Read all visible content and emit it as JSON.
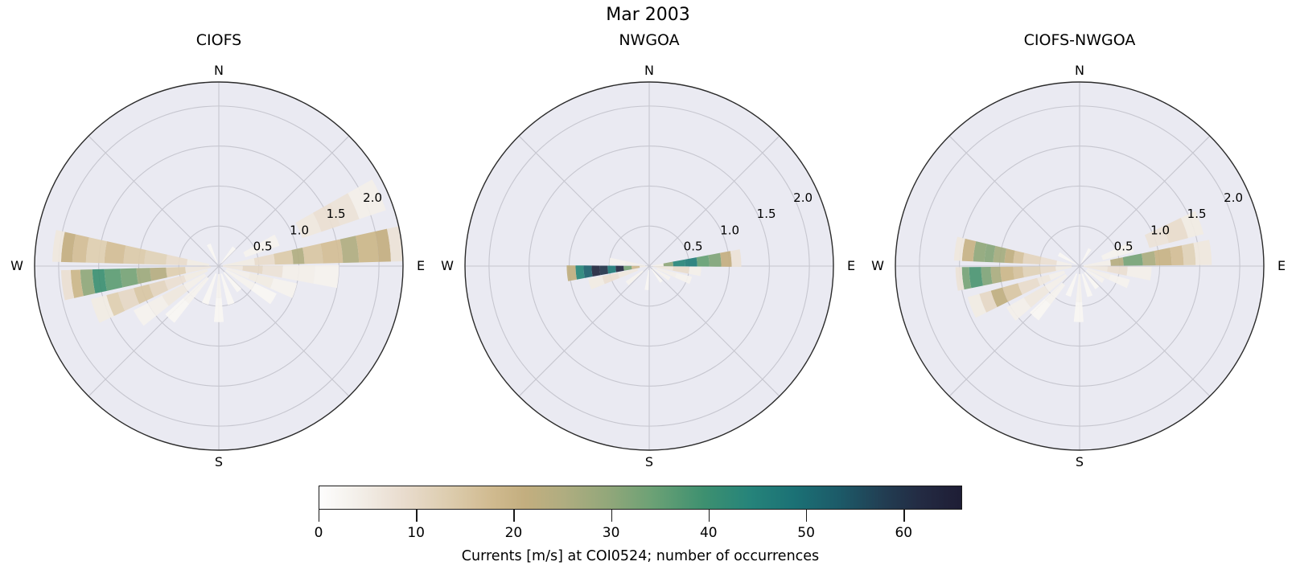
{
  "figure": {
    "title": "Mar 2003"
  },
  "axes": {
    "cardinal_labels": {
      "n": "N",
      "e": "E",
      "s": "S",
      "w": "W"
    },
    "r_tick_labels": [
      "0.5",
      "1.0",
      "1.5",
      "2.0"
    ],
    "r_max": 2.3,
    "theta_grid_step_deg": 45,
    "face_color": "#eaeaf2",
    "grid_color": "#c6c6cf",
    "spine_color": "#2b2b2b"
  },
  "colorbar": {
    "label": "Currents [m/s] at COI0524; number of occurrences",
    "ticks": [
      0,
      10,
      20,
      30,
      40,
      50,
      60
    ],
    "vmin": 0,
    "vmax": 66,
    "colormap_name": "rain-like (white-tan-green-teal-navy)",
    "colormap_stops": [
      [
        0.0,
        "#fdfdfd"
      ],
      [
        0.06,
        "#f3efe9"
      ],
      [
        0.13,
        "#e9dcce"
      ],
      [
        0.2,
        "#ddcdaf"
      ],
      [
        0.27,
        "#d0ba8f"
      ],
      [
        0.32,
        "#c3ae7f"
      ],
      [
        0.38,
        "#b0ad80"
      ],
      [
        0.45,
        "#92a77a"
      ],
      [
        0.52,
        "#6ba175"
      ],
      [
        0.6,
        "#3d9070"
      ],
      [
        0.67,
        "#26847a"
      ],
      [
        0.74,
        "#1b7175"
      ],
      [
        0.81,
        "#1c5a68"
      ],
      [
        0.88,
        "#223d52"
      ],
      [
        0.94,
        "#232a42"
      ],
      [
        1.0,
        "#1e1d35"
      ]
    ]
  },
  "chart_data": [
    {
      "type": "polar_rose_histogram",
      "title": "CIOFS",
      "angle_convention": "compass degrees, 0=N, 90=E",
      "radial_axis": "current speed [m/s], rings at 0.5/1.0/1.5/2.0, max 2.3",
      "color_meaning": "number of occurrences (see colorbar, 0-66)",
      "wedges": [
        {
          "dir": 83,
          "w": 11,
          "segments": [
            [
              0.05,
              0.45,
              5
            ],
            [
              0.45,
              0.7,
              9
            ],
            [
              0.7,
              0.93,
              14
            ],
            [
              0.93,
              1.07,
              25
            ],
            [
              1.07,
              1.3,
              15
            ],
            [
              1.3,
              1.55,
              17
            ],
            [
              1.55,
              1.75,
              25
            ],
            [
              1.75,
              2.0,
              19
            ],
            [
              2.0,
              2.15,
              21
            ],
            [
              2.15,
              2.3,
              7
            ]
          ]
        },
        {
          "dir": 66,
          "w": 11,
          "segments": [
            [
              0.35,
              0.8,
              3
            ],
            [
              1.1,
              1.35,
              6
            ],
            [
              1.35,
              1.6,
              8
            ],
            [
              1.6,
              1.85,
              7
            ],
            [
              1.85,
              2.2,
              4
            ]
          ]
        },
        {
          "dir": 95,
          "w": 11,
          "segments": [
            [
              0.05,
              0.3,
              6
            ],
            [
              0.3,
              0.55,
              10
            ],
            [
              0.55,
              0.8,
              7
            ],
            [
              0.8,
              1.2,
              4
            ],
            [
              1.2,
              1.5,
              3
            ]
          ]
        },
        {
          "dir": 108,
          "w": 11,
          "segments": [
            [
              0.1,
              0.4,
              4
            ],
            [
              0.4,
              0.7,
              5
            ],
            [
              0.7,
              1.0,
              3
            ]
          ]
        },
        {
          "dir": 121,
          "w": 11,
          "segments": [
            [
              0.1,
              0.5,
              3
            ],
            [
              0.5,
              0.8,
              2
            ]
          ]
        },
        {
          "dir": 277,
          "w": 11,
          "segments": [
            [
              0.12,
              0.4,
              5
            ],
            [
              0.4,
              0.66,
              9
            ],
            [
              0.66,
              0.93,
              12
            ],
            [
              0.93,
              1.19,
              14
            ],
            [
              1.19,
              1.43,
              17
            ],
            [
              1.43,
              1.66,
              13
            ],
            [
              1.66,
              1.83,
              17
            ],
            [
              1.83,
              1.97,
              21
            ],
            [
              1.97,
              2.08,
              6
            ]
          ]
        },
        {
          "dir": 263,
          "w": 11,
          "segments": [
            [
              0.1,
              0.42,
              6
            ],
            [
              0.42,
              0.66,
              13
            ],
            [
              0.66,
              0.86,
              24
            ],
            [
              0.86,
              1.03,
              28
            ],
            [
              1.03,
              1.23,
              33
            ],
            [
              1.23,
              1.43,
              36
            ],
            [
              1.43,
              1.58,
              40
            ],
            [
              1.58,
              1.73,
              30
            ],
            [
              1.73,
              1.85,
              19
            ],
            [
              1.85,
              1.97,
              8
            ]
          ]
        },
        {
          "dir": 250,
          "w": 11,
          "segments": [
            [
              0.15,
              0.45,
              5
            ],
            [
              0.45,
              0.7,
              8
            ],
            [
              0.7,
              0.9,
              11
            ],
            [
              0.9,
              1.1,
              15
            ],
            [
              1.1,
              1.3,
              10
            ],
            [
              1.3,
              1.45,
              13
            ],
            [
              1.45,
              1.65,
              5
            ]
          ]
        },
        {
          "dir": 237,
          "w": 11,
          "segments": [
            [
              0.2,
              0.5,
              4
            ],
            [
              0.5,
              0.8,
              6
            ],
            [
              0.8,
              1.0,
              4
            ],
            [
              1.0,
              1.2,
              3
            ]
          ]
        },
        {
          "dir": 223,
          "w": 10,
          "segments": [
            [
              0.2,
              0.6,
              3
            ],
            [
              0.6,
              0.9,
              2
            ]
          ]
        },
        {
          "dir": 180,
          "w": 10,
          "segments": [
            [
              0.1,
              0.4,
              3
            ],
            [
              0.4,
              0.7,
              2
            ]
          ]
        },
        {
          "dir": 162,
          "w": 10,
          "segments": [
            [
              0.1,
              0.5,
              2
            ]
          ]
        },
        {
          "dir": 200,
          "w": 10,
          "segments": [
            [
              0.1,
              0.5,
              2
            ]
          ]
        },
        {
          "dir": 140,
          "w": 10,
          "segments": [
            [
              0.1,
              0.4,
              2
            ]
          ]
        },
        {
          "dir": 335,
          "w": 10,
          "segments": [
            [
              0.05,
              0.3,
              2
            ]
          ]
        },
        {
          "dir": 40,
          "w": 10,
          "segments": [
            [
              0.05,
              0.3,
              2
            ]
          ]
        }
      ]
    },
    {
      "type": "polar_rose_histogram",
      "title": "NWGOA",
      "angle_convention": "compass degrees, 0=N, 90=E",
      "radial_axis": "current speed [m/s], rings at 0.5/1.0/1.5/2.0, max 2.3",
      "color_meaning": "number of occurrences (see colorbar, 0-66)",
      "wedges": [
        {
          "dir": 85,
          "w": 11,
          "segments": [
            [
              0.02,
              0.18,
              4
            ],
            [
              0.18,
              0.3,
              30
            ],
            [
              0.3,
              0.45,
              44
            ],
            [
              0.45,
              0.6,
              46
            ],
            [
              0.6,
              0.75,
              35
            ],
            [
              0.75,
              0.9,
              32
            ],
            [
              0.9,
              1.03,
              21
            ],
            [
              1.03,
              1.15,
              7
            ]
          ]
        },
        {
          "dir": 96,
          "w": 10,
          "segments": [
            [
              0.05,
              0.3,
              6
            ],
            [
              0.3,
              0.5,
              9
            ],
            [
              0.5,
              0.65,
              4
            ]
          ]
        },
        {
          "dir": 109,
          "w": 10,
          "segments": [
            [
              0.1,
              0.35,
              4
            ],
            [
              0.35,
              0.55,
              3
            ]
          ]
        },
        {
          "dir": 265,
          "w": 11,
          "segments": [
            [
              0.02,
              0.12,
              5
            ],
            [
              0.12,
              0.22,
              18
            ],
            [
              0.22,
              0.32,
              33
            ],
            [
              0.32,
              0.42,
              63
            ],
            [
              0.42,
              0.52,
              47
            ],
            [
              0.52,
              0.62,
              60
            ],
            [
              0.62,
              0.72,
              63
            ],
            [
              0.72,
              0.82,
              52
            ],
            [
              0.82,
              0.92,
              44
            ],
            [
              0.92,
              1.03,
              22
            ]
          ]
        },
        {
          "dir": 253,
          "w": 10,
          "segments": [
            [
              0.15,
              0.4,
              6
            ],
            [
              0.4,
              0.6,
              8
            ],
            [
              0.6,
              0.78,
              5
            ]
          ]
        },
        {
          "dir": 277,
          "w": 10,
          "segments": [
            [
              0.05,
              0.3,
              4
            ],
            [
              0.3,
              0.5,
              3
            ]
          ]
        },
        {
          "dir": 122,
          "w": 10,
          "segments": [
            [
              0.05,
              0.3,
              3
            ]
          ]
        },
        {
          "dir": 142,
          "w": 10,
          "segments": [
            [
              0.05,
              0.25,
              2
            ]
          ]
        },
        {
          "dir": 232,
          "w": 10,
          "segments": [
            [
              0.1,
              0.35,
              3
            ]
          ]
        },
        {
          "dir": 186,
          "w": 10,
          "segments": [
            [
              0.05,
              0.3,
              2
            ]
          ]
        }
      ]
    },
    {
      "type": "polar_rose_histogram",
      "title": "CIOFS-NWGOA",
      "angle_convention": "compass degrees, 0=N, 90=E",
      "radial_axis": "current speed [m/s], rings at 0.5/1.0/1.5/2.0, max 2.3",
      "color_meaning": "number of occurrences (see colorbar, 0-66)",
      "wedges": [
        {
          "dir": 84,
          "w": 11,
          "segments": [
            [
              0.05,
              0.39,
              4
            ],
            [
              0.39,
              0.55,
              24
            ],
            [
              0.55,
              0.79,
              33
            ],
            [
              0.79,
              0.95,
              26
            ],
            [
              0.95,
              1.15,
              20
            ],
            [
              1.15,
              1.3,
              17
            ],
            [
              1.3,
              1.45,
              12
            ],
            [
              1.45,
              1.65,
              6
            ]
          ]
        },
        {
          "dir": 70,
          "w": 11,
          "segments": [
            [
              0.3,
              0.7,
              3
            ],
            [
              0.9,
              1.15,
              7
            ],
            [
              1.15,
              1.4,
              9
            ],
            [
              1.4,
              1.6,
              5
            ]
          ]
        },
        {
          "dir": 96,
          "w": 11,
          "segments": [
            [
              0.05,
              0.35,
              6
            ],
            [
              0.35,
              0.6,
              8
            ],
            [
              0.6,
              0.9,
              4
            ]
          ]
        },
        {
          "dir": 110,
          "w": 10,
          "segments": [
            [
              0.1,
              0.4,
              4
            ],
            [
              0.4,
              0.65,
              3
            ]
          ]
        },
        {
          "dir": 278,
          "w": 11,
          "segments": [
            [
              0.1,
              0.29,
              4
            ],
            [
              0.29,
              0.49,
              8
            ],
            [
              0.49,
              0.71,
              11
            ],
            [
              0.71,
              0.83,
              16
            ],
            [
              0.83,
              0.94,
              22
            ],
            [
              0.94,
              1.08,
              27
            ],
            [
              1.08,
              1.19,
              31
            ],
            [
              1.19,
              1.33,
              30
            ],
            [
              1.33,
              1.47,
              20
            ],
            [
              1.47,
              1.57,
              6
            ]
          ]
        },
        {
          "dir": 264,
          "w": 11,
          "segments": [
            [
              0.1,
              0.3,
              5
            ],
            [
              0.3,
              0.49,
              9
            ],
            [
              0.49,
              0.71,
              12
            ],
            [
              0.71,
              0.83,
              16
            ],
            [
              0.83,
              0.99,
              19
            ],
            [
              0.99,
              1.11,
              26
            ],
            [
              1.11,
              1.23,
              32
            ],
            [
              1.23,
              1.38,
              38
            ],
            [
              1.38,
              1.47,
              33
            ],
            [
              1.47,
              1.55,
              7
            ]
          ]
        },
        {
          "dir": 249,
          "w": 11,
          "segments": [
            [
              0.2,
              0.4,
              4
            ],
            [
              0.4,
              0.55,
              6
            ],
            [
              0.55,
              0.8,
              9
            ],
            [
              0.8,
              1.0,
              15
            ],
            [
              1.0,
              1.15,
              22
            ],
            [
              1.15,
              1.3,
              10
            ],
            [
              1.3,
              1.45,
              5
            ]
          ]
        },
        {
          "dir": 235,
          "w": 11,
          "segments": [
            [
              0.2,
              0.5,
              4
            ],
            [
              0.5,
              0.8,
              6
            ],
            [
              0.8,
              1.05,
              4
            ]
          ]
        },
        {
          "dir": 222,
          "w": 10,
          "segments": [
            [
              0.3,
              0.6,
              3
            ],
            [
              0.6,
              0.85,
              2
            ]
          ]
        },
        {
          "dir": 181,
          "w": 10,
          "segments": [
            [
              0.1,
              0.45,
              3
            ],
            [
              0.45,
              0.7,
              2
            ]
          ]
        },
        {
          "dir": 161,
          "w": 10,
          "segments": [
            [
              0.1,
              0.4,
              2
            ]
          ]
        },
        {
          "dir": 141,
          "w": 10,
          "segments": [
            [
              0.1,
              0.35,
              2
            ]
          ]
        },
        {
          "dir": 122,
          "w": 10,
          "segments": [
            [
              0.1,
              0.35,
              3
            ]
          ]
        },
        {
          "dir": 201,
          "w": 10,
          "segments": [
            [
              0.1,
              0.4,
              2
            ]
          ]
        },
        {
          "dir": 300,
          "w": 10,
          "segments": [
            [
              0.05,
              0.3,
              2
            ]
          ]
        },
        {
          "dir": 31,
          "w": 10,
          "segments": [
            [
              0.05,
              0.25,
              2
            ]
          ]
        }
      ]
    }
  ]
}
